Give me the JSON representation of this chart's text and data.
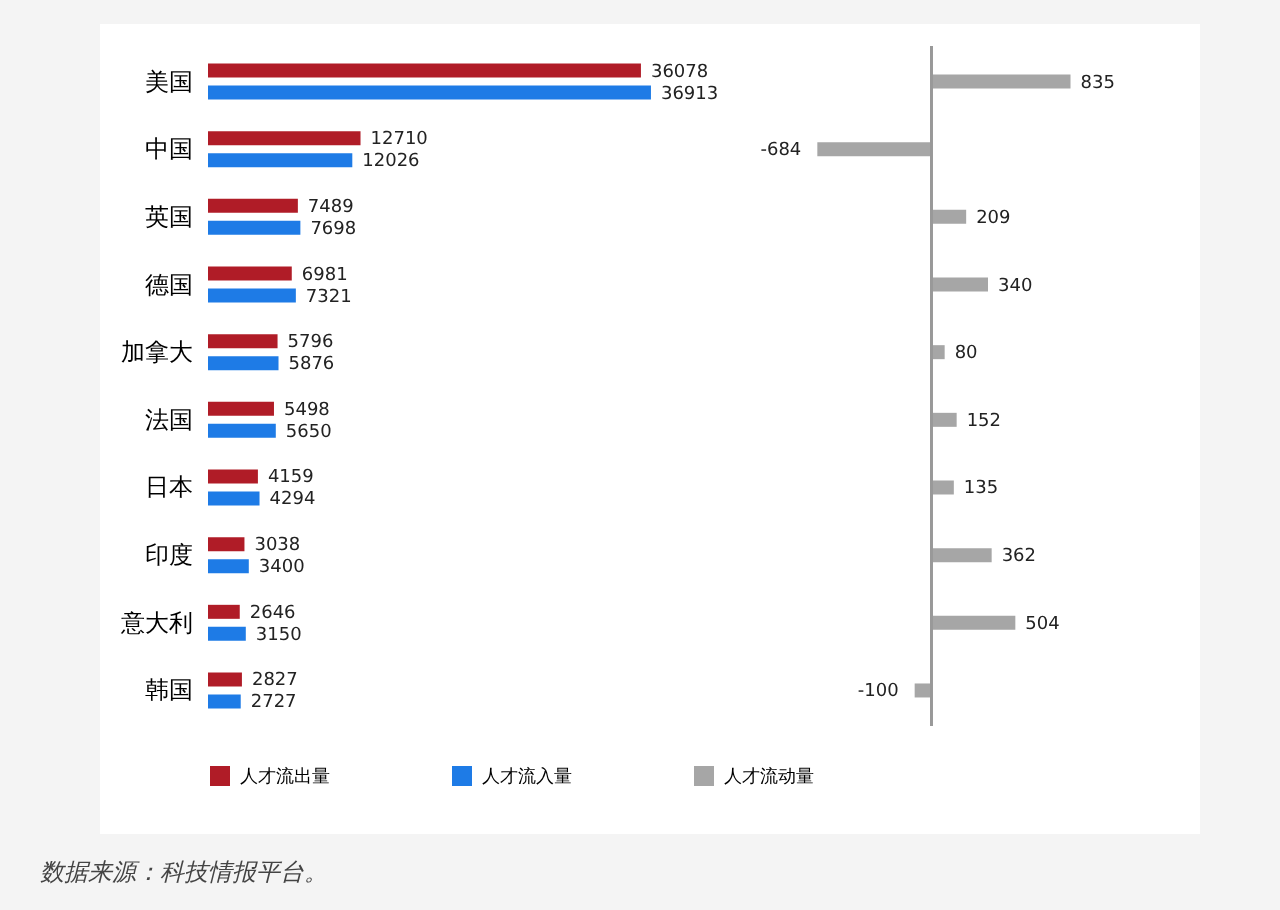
{
  "chart_data": [
    {
      "type": "bar",
      "orientation": "horizontal",
      "categories": [
        "美国",
        "中国",
        "英国",
        "德国",
        "加拿大",
        "法国",
        "日本",
        "印度",
        "意大利",
        "韩国"
      ],
      "series": [
        {
          "name": "人才流出量",
          "color": "#b01c27",
          "values": [
            36078,
            12710,
            7489,
            6981,
            5796,
            5498,
            4159,
            3038,
            2646,
            2827
          ]
        },
        {
          "name": "人才流入量",
          "color": "#1e7be6",
          "values": [
            36913,
            12026,
            7698,
            7321,
            5876,
            5650,
            4294,
            3400,
            3150,
            2727
          ]
        }
      ],
      "data_labels": true,
      "legend": "bottom"
    },
    {
      "type": "bar",
      "orientation": "horizontal",
      "categories": [
        null,
        null,
        null,
        null,
        null,
        null,
        null,
        null,
        null,
        null
      ],
      "series": [
        {
          "name": "人才流动量",
          "color": "#a6a6a6",
          "values": [
            835,
            -684,
            209,
            340,
            80,
            152,
            135,
            362,
            504,
            -100
          ]
        }
      ],
      "data_labels": true,
      "legend": "bottom",
      "annotations": [
        "数据来源：科技情报平台。"
      ]
    }
  ]
}
